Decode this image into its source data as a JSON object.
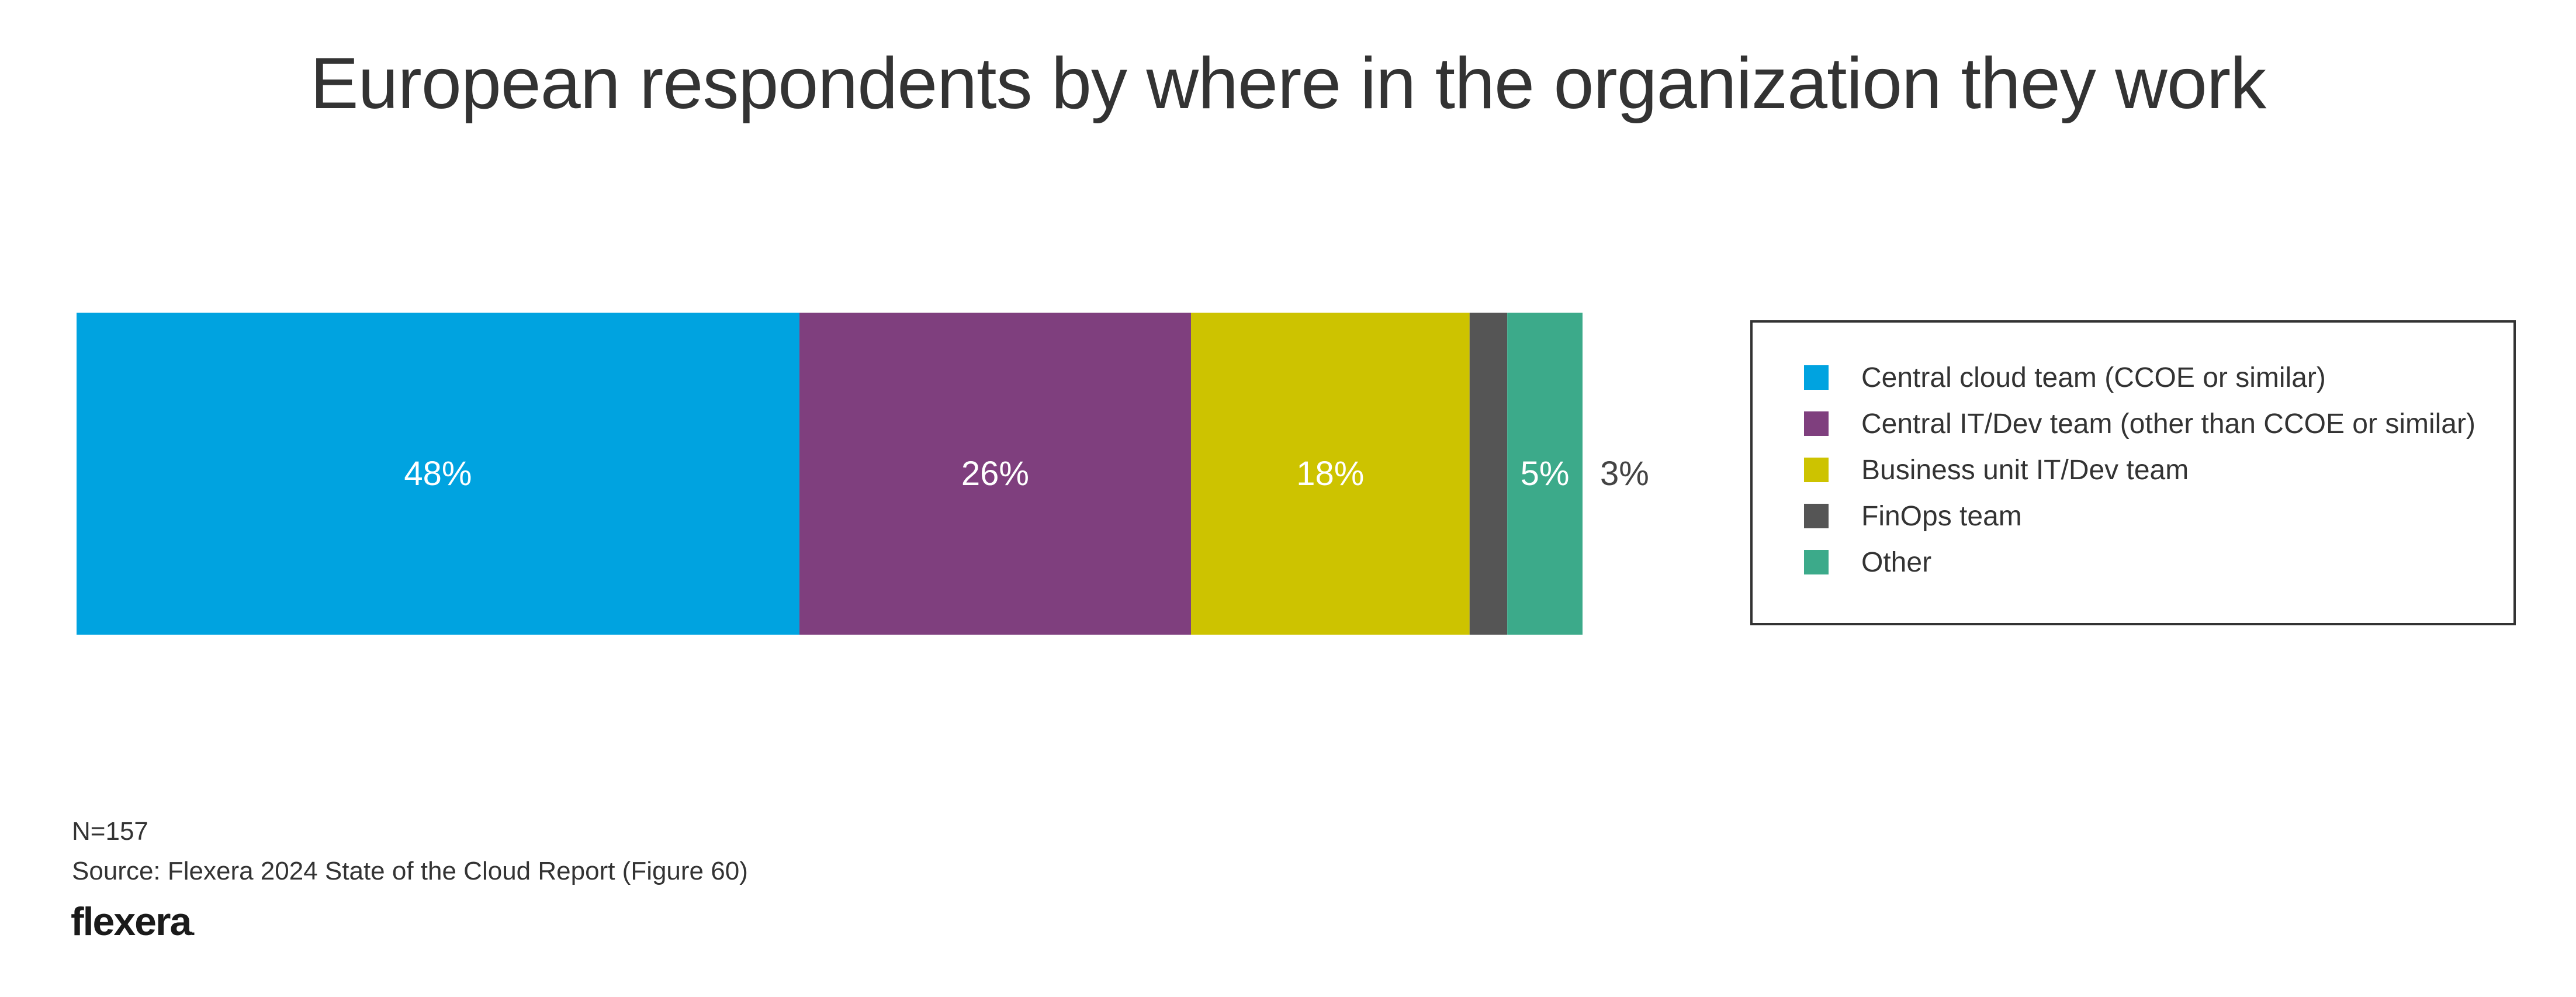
{
  "chart_data": {
    "type": "bar",
    "orientation": "horizontal-stacked-100",
    "title": "European respondents by where in the organization they work",
    "xlabel": "",
    "ylabel": "",
    "xlim": [
      0,
      100
    ],
    "grid": false,
    "legend_position": "right",
    "series": [
      {
        "name": "Central cloud team (CCOE or similar)",
        "value": 48,
        "label": "48%",
        "color": "#00a3e0",
        "label_color": "#ffffff",
        "label_outside": false
      },
      {
        "name": "Central IT/Dev team (other than CCOE or similar)",
        "value": 26,
        "label": "26%",
        "color": "#7f3f7e",
        "label_color": "#ffffff",
        "label_outside": false
      },
      {
        "name": "Business unit IT/Dev team",
        "value": 18.5,
        "label": "18%",
        "color": "#cdc300",
        "label_color": "#ffffff",
        "label_outside": false
      },
      {
        "name": "FinOps team",
        "value": 2.5,
        "label": "3%",
        "color": "#555555",
        "label_color": "#444444",
        "label_outside": true
      },
      {
        "name": "Other",
        "value": 5,
        "label": "5%",
        "color": "#3caa8a",
        "label_color": "#ffffff",
        "label_outside": false
      }
    ]
  },
  "footer": {
    "n_text": "N=157",
    "source_text": "Source: Flexera 2024 State of the Cloud Report (Figure 60)",
    "logo_text": "flexera",
    "logo_dot": "."
  }
}
